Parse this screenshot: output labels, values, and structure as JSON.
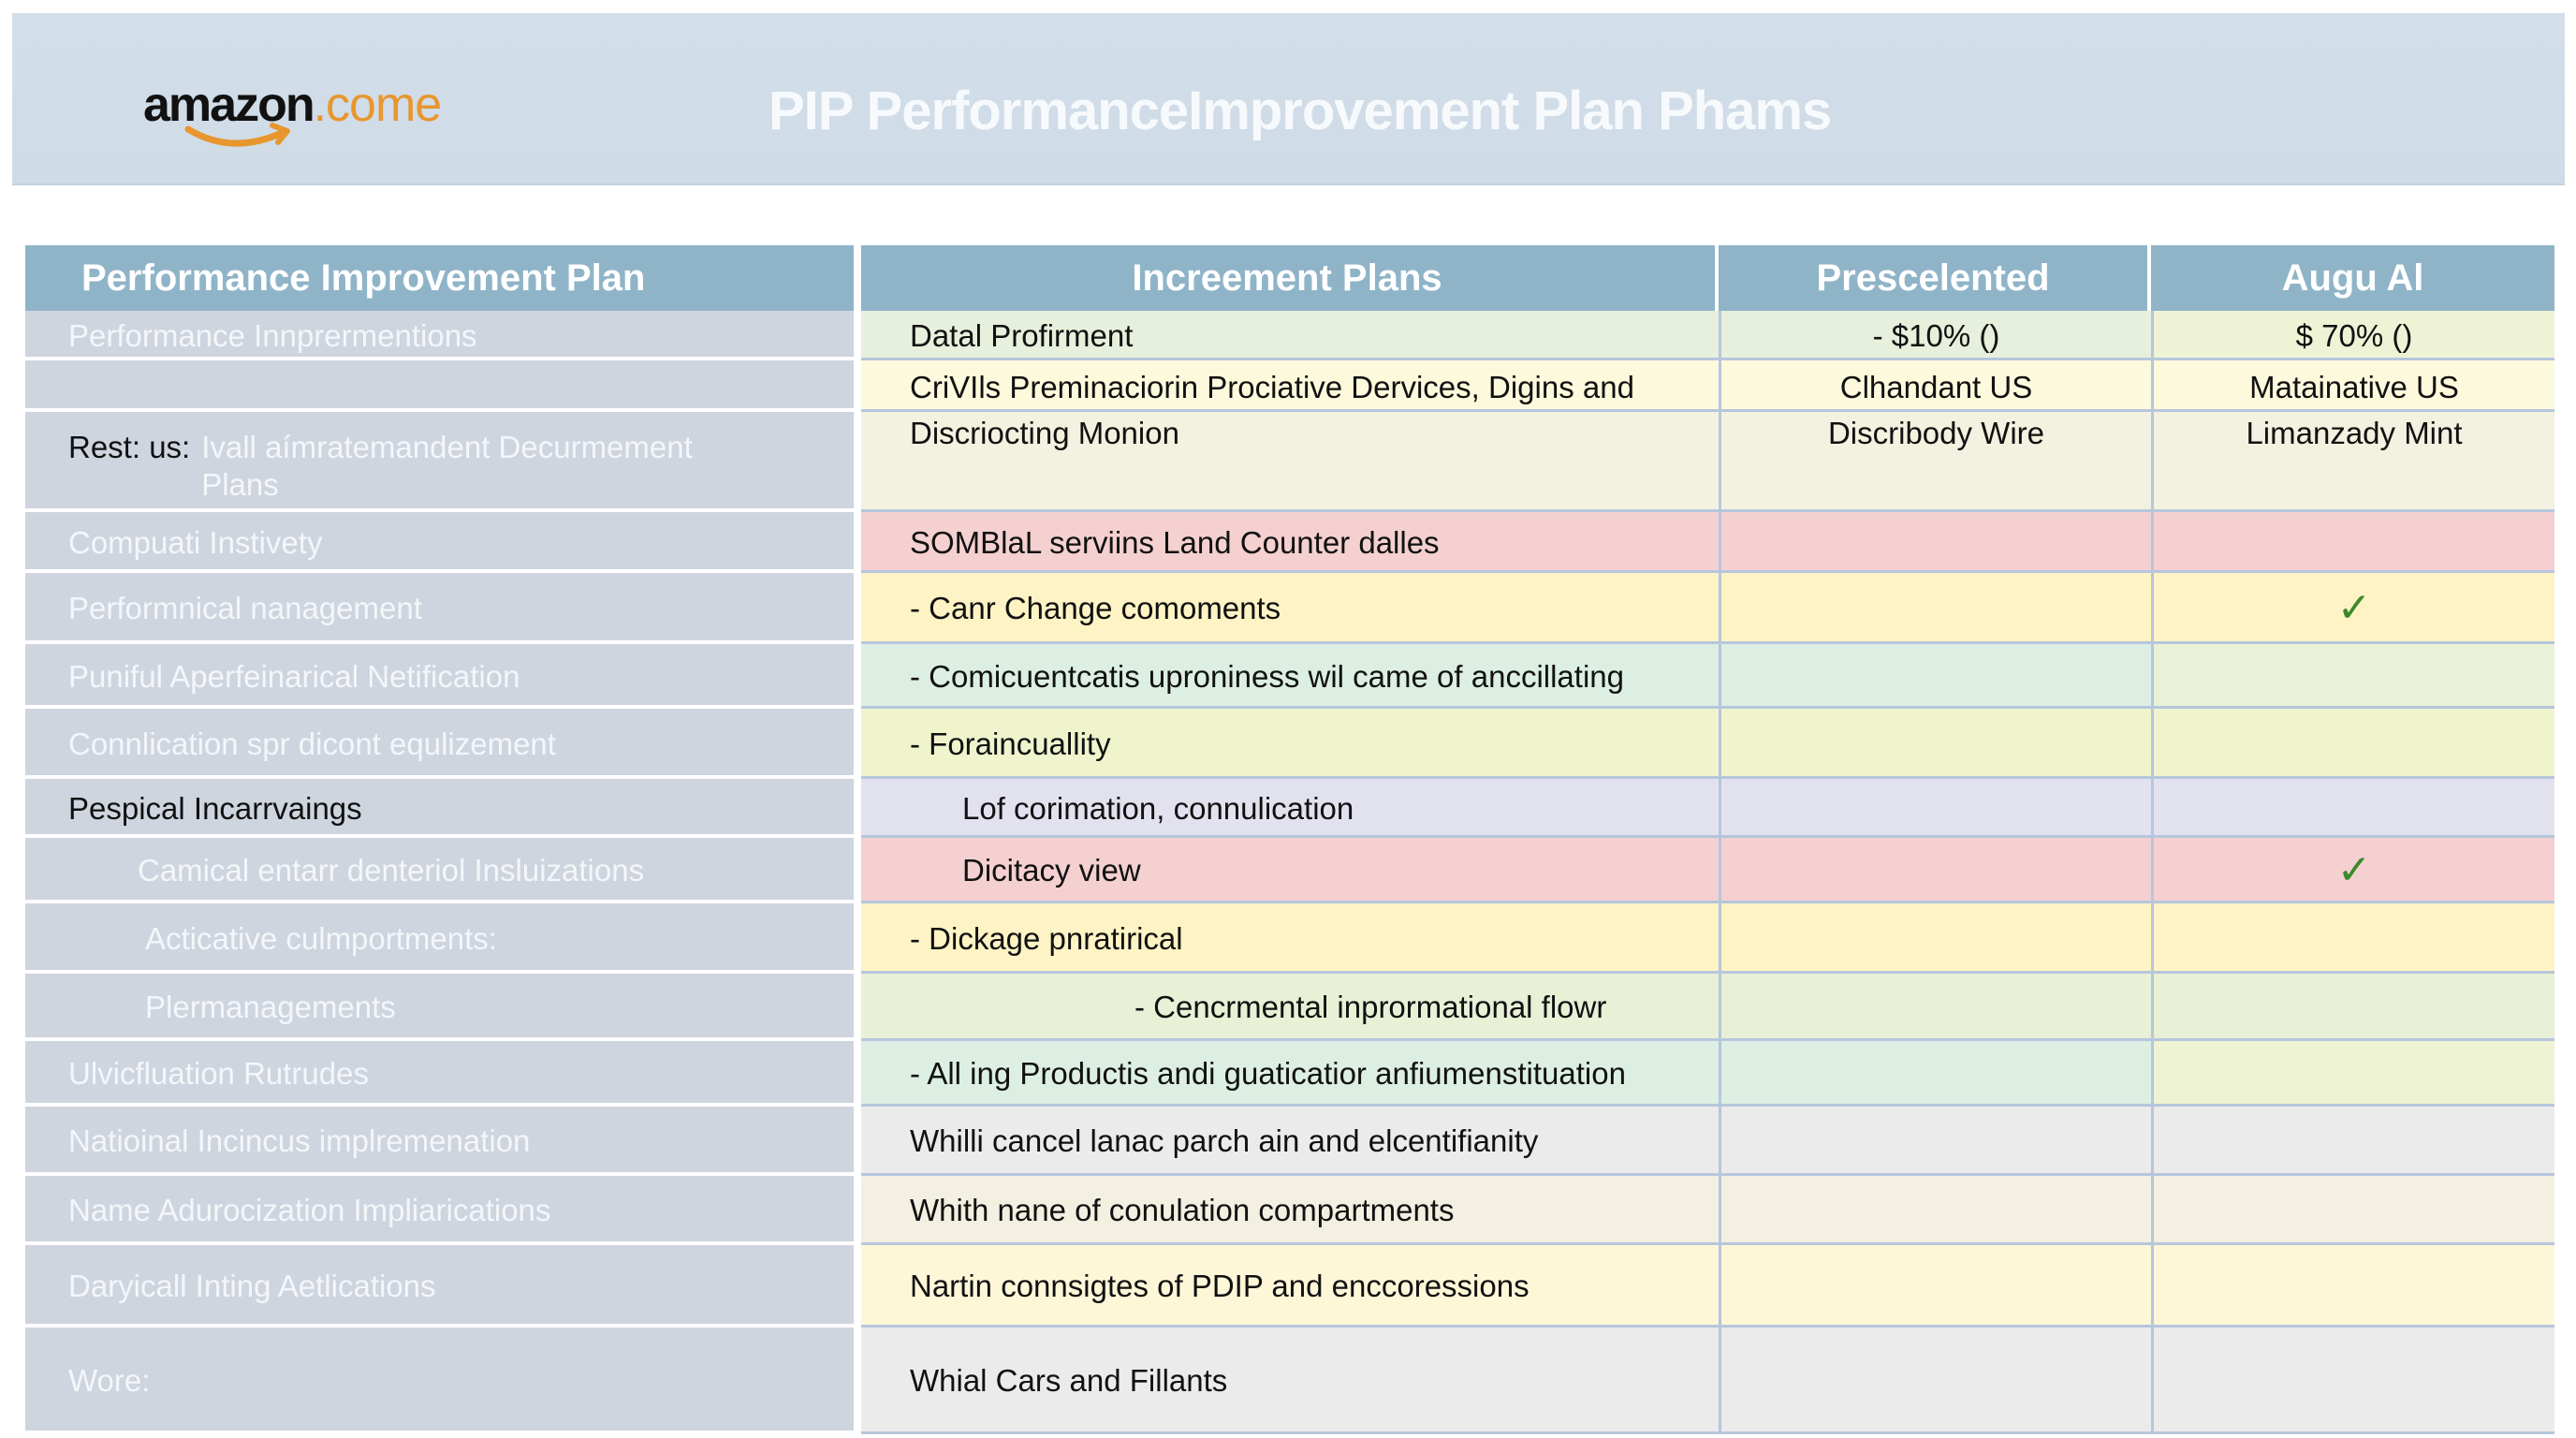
{
  "banner": {
    "logo_word": "amazon",
    "logo_tld": ".come",
    "title": "PIP PerformanceImprovement Plan Phams",
    "colors": {
      "background": "#d0dce7",
      "title": "#f7fafc",
      "logo_orange": "#e8962e"
    }
  },
  "table": {
    "headers": [
      "Performance Improvement Plan",
      "Increement Plans",
      "Prescelented",
      "Augu Al"
    ],
    "header_color": "#8fb4c8",
    "rows": [
      {
        "label": "Performance Innprermentions",
        "plan": "Datal Profirment",
        "presc": "- $10% ()",
        "augu": "$ 70% ()",
        "bg": "#e6f0dc",
        "bg4": "#eef3d6"
      },
      {
        "label": "",
        "plan": "CriVIls Preminaciorin Prociative Dervices, Digins and",
        "presc": "Clhandant US",
        "augu": "Matainative US",
        "bg": "#fdf9dc",
        "bg4": "#fdf9dc"
      },
      {
        "label_prefix": "Rest: us:",
        "label": "Ivall aímratemandent Decurmement Plans",
        "plan": "Discriocting Monion",
        "presc": "Discribody Wire",
        "augu": "Limanzady Mint",
        "bg": "#f3f1df",
        "bg4": "#f3f1df"
      },
      {
        "label": "Compuati Instivety",
        "plan": "SOMBlaL serviins Land Counter dalles",
        "presc": "",
        "augu": "",
        "bg": "#f4d0d0",
        "bg4": "#f4d0d0"
      },
      {
        "label": "Performnical nanagement",
        "plan": "- Canr Change comoments",
        "presc": "",
        "augu": "✓",
        "bg": "#fdf3c4",
        "bg4": "#fdf3c4"
      },
      {
        "label": "Puniful Aperfeinarical Netification",
        "plan": "- Comicuentcatis uproniness wil came of anccillating",
        "presc": "",
        "augu": "",
        "bg": "#dcefe2",
        "bg4": "#e9f2d7"
      },
      {
        "label": "Connlication spr dicont equlizement",
        "plan": "- Foraincuallity",
        "presc": "",
        "augu": "",
        "bg": "#f0f4cd",
        "bg4": "#f0f4cd"
      },
      {
        "label": "Pespical Incarrvaings",
        "label_dark": true,
        "plan": "Lof corimation, connulication",
        "presc": "",
        "augu": "",
        "bg": "#e2e2ef",
        "bg4": "#e2e2ef"
      },
      {
        "label": "Camical entarr denteriol Insluizations",
        "plan": "Dicitacy view",
        "presc": "",
        "augu": "✓",
        "bg": "#f4d0d0",
        "bg4": "#f4d0d0"
      },
      {
        "label": "Acticative culmportments:",
        "plan": "- Dickage pnratirical",
        "presc": "",
        "augu": "",
        "bg": "#fdf3c4",
        "bg4": "#fdf3c4"
      },
      {
        "label": "Plermanagements",
        "plan": "- Cencrmental inprormational flowr",
        "presc": "",
        "augu": "",
        "bg": "#e8f0d6",
        "bg4": "#e8f0d6"
      },
      {
        "label": "Ulvicfluation Rutrudes",
        "plan": "- All ing Productis andi guaticatior anfiumenstituation",
        "presc": "",
        "augu": "",
        "bg": "#dcefe2",
        "bg4": "#eef3d3"
      },
      {
        "label": "Natioinal Incincus implremenation",
        "plan": "Whilli cancel lanac parch ain and elcentifianity",
        "presc": "",
        "augu": "",
        "bg": "#ebebeb",
        "bg4": "#ebebeb"
      },
      {
        "label": "Name Adurocization Impliarications",
        "plan": "Whith nane of conulation compartments",
        "presc": "",
        "augu": "",
        "bg": "#f3f0e2",
        "bg4": "#f3f0e2"
      },
      {
        "label": "Daryicall Inting Aetlications",
        "plan": "Nartin connsigtes of PDIP and enccoressions",
        "presc": "",
        "augu": "",
        "bg": "#fdf7d8",
        "bg4": "#fdf7d8"
      },
      {
        "label": "Wore:",
        "plan": "Whial Cars and Fillants",
        "presc": "",
        "augu": "",
        "bg": "#ebebeb",
        "bg4": "#ebebeb"
      }
    ]
  }
}
